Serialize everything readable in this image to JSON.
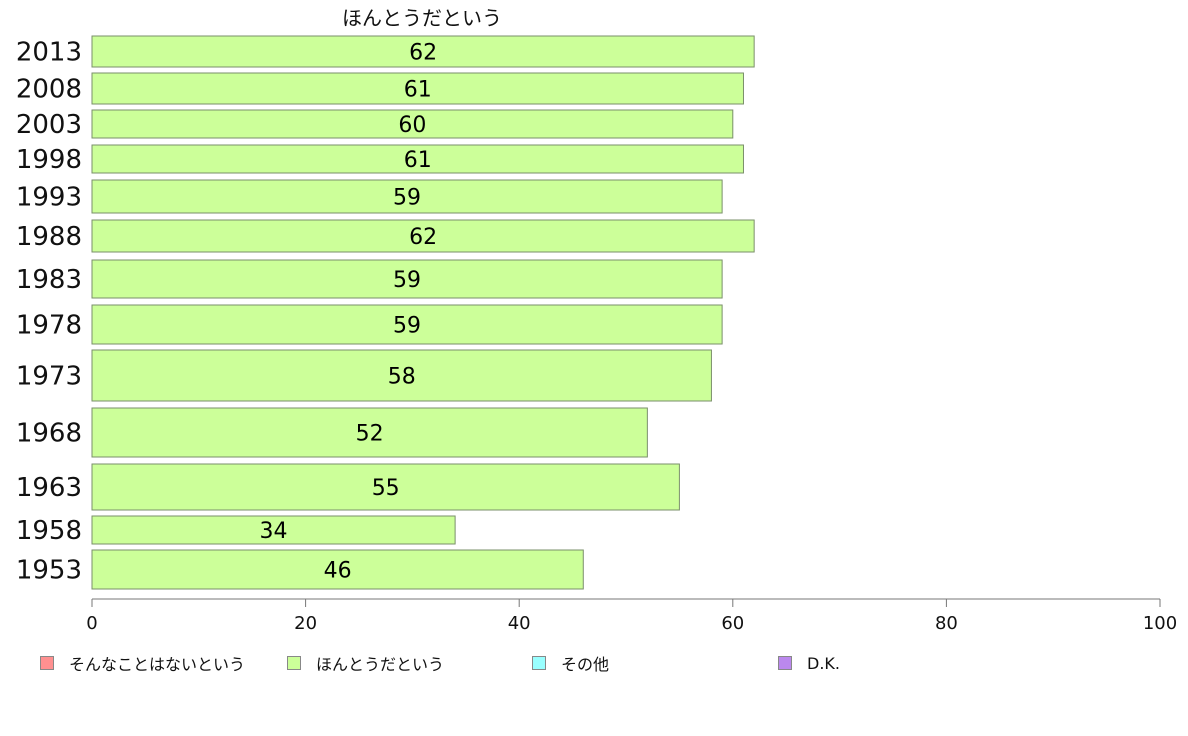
{
  "chart_data": {
    "type": "bar",
    "orientation": "horizontal",
    "title": "ほんとうだという",
    "categories": [
      "2013",
      "2008",
      "2003",
      "1998",
      "1993",
      "1988",
      "1983",
      "1978",
      "1973",
      "1968",
      "1963",
      "1958",
      "1953"
    ],
    "series": [
      {
        "name": "ほんとうだという",
        "color": "#ccff99",
        "values": [
          62,
          61,
          60,
          61,
          59,
          62,
          59,
          59,
          58,
          52,
          55,
          34,
          46
        ],
        "data_labels": [
          "62",
          "61",
          "60",
          "61",
          "59",
          "62",
          "59",
          "59",
          "58",
          "52",
          "55",
          "34",
          "46"
        ]
      }
    ],
    "xlim": [
      0,
      100
    ],
    "xticks": [
      "0",
      "20",
      "40",
      "60",
      "80",
      "100"
    ],
    "grid": false,
    "legend_position": "bottom",
    "legend": [
      {
        "label": "そんなことはないという",
        "color": "#ff9090"
      },
      {
        "label": "ほんとうだという",
        "color": "#ccff99"
      },
      {
        "label": "その他",
        "color": "#99ffff"
      },
      {
        "label": "D.K.",
        "color": "#bb88ee"
      }
    ]
  }
}
